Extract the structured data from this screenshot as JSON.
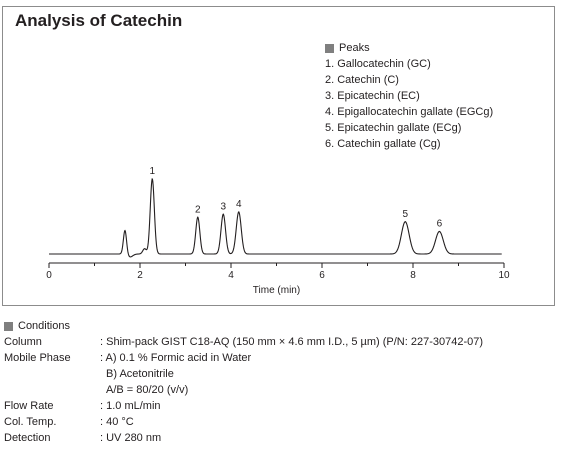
{
  "title": "Analysis of Catechin",
  "legend": {
    "heading": "Peaks",
    "items": [
      "1. Gallocatechin (GC)",
      "2. Catechin (C)",
      "3. Epicatechin (EC)",
      "4. Epigallocatechin gallate (EGCg)",
      "5. Epicatechin gallate (ECg)",
      "6. Catechin gallate (Cg)"
    ]
  },
  "chart_data": {
    "type": "line",
    "title": "Analysis of Catechin",
    "xlabel": "Time (min)",
    "ylabel": "",
    "xlim": [
      0,
      10
    ],
    "x_ticks": [
      0,
      2,
      4,
      6,
      8,
      10
    ],
    "grid": false,
    "baseline_noise": [
      {
        "t": 1.67,
        "height": 0.32,
        "width": 0.035
      },
      {
        "t": 1.78,
        "height": -0.04,
        "width": 0.06
      },
      {
        "t": 2.1,
        "height": 0.07,
        "width": 0.04
      }
    ],
    "peaks": [
      {
        "label": "1",
        "name": "Gallocatechin (GC)",
        "time": 2.27,
        "height": 1.0,
        "width": 0.045
      },
      {
        "label": "2",
        "name": "Catechin (C)",
        "time": 3.27,
        "height": 0.49,
        "width": 0.045
      },
      {
        "label": "3",
        "name": "Epicatechin (EC)",
        "time": 3.83,
        "height": 0.53,
        "width": 0.05
      },
      {
        "label": "4",
        "name": "Epigallocatechin gallate (EGCg)",
        "time": 4.17,
        "height": 0.56,
        "width": 0.055
      },
      {
        "label": "5",
        "name": "Epicatechin gallate (ECg)",
        "time": 7.83,
        "height": 0.43,
        "width": 0.085
      },
      {
        "label": "6",
        "name": "Catechin gallate (Cg)",
        "time": 8.58,
        "height": 0.3,
        "width": 0.085
      }
    ]
  },
  "conditions": {
    "heading": "Conditions",
    "rows": [
      {
        "label": "Column",
        "values": [
          ": Shim-pack GIST C18-AQ (150 mm × 4.6 mm I.D., 5 µm) (P/N: 227-30742-07)"
        ]
      },
      {
        "label": "Mobile Phase",
        "values": [
          ": A) 0.1 % Formic acid in Water",
          "B) Acetonitrile",
          "A/B = 80/20 (v/v)"
        ]
      },
      {
        "label": "Flow Rate",
        "values": [
          ": 1.0 mL/min"
        ]
      },
      {
        "label": "Col. Temp.",
        "values": [
          ": 40 °C"
        ]
      },
      {
        "label": "Detection",
        "values": [
          ": UV 280 nm"
        ]
      }
    ]
  },
  "colors": {
    "trace": "#231f20",
    "frame": "#8c8c8c",
    "marker": "#7f7f7f"
  }
}
